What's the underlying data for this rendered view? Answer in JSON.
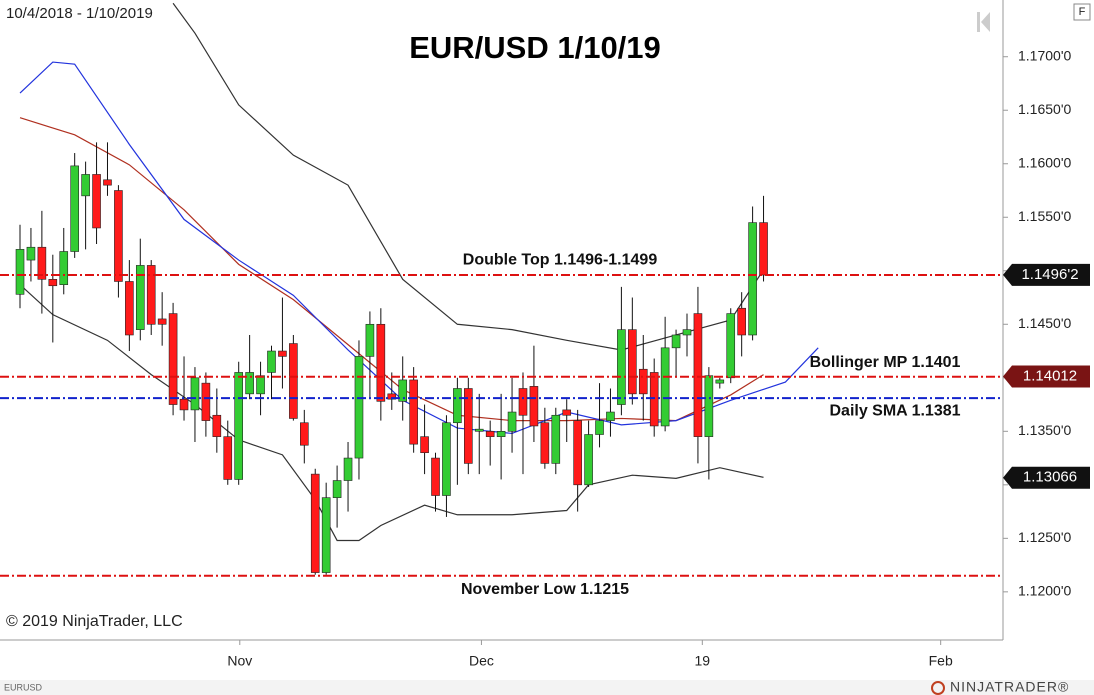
{
  "chart_data": {
    "type": "candlestick",
    "title": "EUR/USD 1/10/19",
    "date_range": "10/4/2018 - 1/10/2019",
    "source": "© 2019 NinjaTrader, LLC",
    "symbol": "EURUSD",
    "brand": "NINJATRADER®",
    "corner_label": "F",
    "up_color": "#33cc33",
    "down_color": "#ff1a1a",
    "x": [
      0,
      1,
      2,
      3,
      4,
      5,
      6,
      7,
      8,
      9,
      10,
      11,
      12,
      13,
      14,
      15,
      16,
      17,
      18,
      19,
      20,
      21,
      22,
      23,
      24,
      25,
      26,
      27,
      28,
      29,
      30,
      31,
      32,
      33,
      34,
      35,
      36,
      37,
      38,
      39,
      40,
      41,
      42,
      43,
      44,
      45,
      46,
      47,
      48,
      49,
      50,
      51,
      52,
      53,
      54,
      55,
      56,
      57,
      58,
      59,
      60,
      61,
      62,
      63,
      64,
      65,
      66,
      67,
      68
    ],
    "open": [
      1.1478,
      1.151,
      1.1522,
      1.1492,
      1.1487,
      1.1518,
      1.157,
      1.159,
      1.1585,
      1.1575,
      1.149,
      1.1445,
      1.1505,
      1.1455,
      1.146,
      1.138,
      1.137,
      1.1395,
      1.1365,
      1.1345,
      1.1305,
      1.1385,
      1.1385,
      1.1405,
      1.1425,
      1.1432,
      1.1358,
      1.131,
      1.1218,
      1.1288,
      1.1304,
      1.1325,
      1.142,
      1.145,
      1.1385,
      1.1378,
      1.1398,
      1.1345,
      1.1325,
      1.129,
      1.1358,
      1.139,
      1.135,
      1.135,
      1.1345,
      1.135,
      1.139,
      1.1392,
      1.1358,
      1.132,
      1.137,
      1.136,
      1.13,
      1.1347,
      1.136,
      1.1375,
      1.1445,
      1.1408,
      1.1405,
      1.1355,
      1.1428,
      1.144,
      1.146,
      1.1345,
      1.1395,
      1.14,
      1.1465,
      1.144,
      1.1545
    ],
    "high": [
      1.1543,
      1.154,
      1.1556,
      1.1515,
      1.154,
      1.161,
      1.1602,
      1.162,
      1.162,
      1.158,
      1.151,
      1.153,
      1.151,
      1.148,
      1.147,
      1.142,
      1.141,
      1.1405,
      1.139,
      1.136,
      1.1415,
      1.144,
      1.1415,
      1.143,
      1.1475,
      1.144,
      1.137,
      1.1315,
      1.1302,
      1.1318,
      1.134,
      1.1435,
      1.1462,
      1.1465,
      1.1405,
      1.142,
      1.141,
      1.1375,
      1.133,
      1.1365,
      1.14,
      1.14,
      1.1385,
      1.136,
      1.1385,
      1.14,
      1.1405,
      1.143,
      1.1372,
      1.1372,
      1.138,
      1.137,
      1.136,
      1.1395,
      1.139,
      1.1485,
      1.1475,
      1.144,
      1.1418,
      1.1457,
      1.1445,
      1.146,
      1.1485,
      1.141,
      1.14,
      1.1465,
      1.148,
      1.156,
      1.157
    ],
    "low": [
      1.1465,
      1.149,
      1.146,
      1.1433,
      1.1478,
      1.1512,
      1.152,
      1.1525,
      1.157,
      1.1475,
      1.1425,
      1.1435,
      1.144,
      1.143,
      1.1365,
      1.136,
      1.134,
      1.1345,
      1.133,
      1.13,
      1.13,
      1.138,
      1.1365,
      1.138,
      1.139,
      1.136,
      1.132,
      1.1216,
      1.1216,
      1.126,
      1.1275,
      1.1305,
      1.138,
      1.136,
      1.137,
      1.136,
      1.133,
      1.131,
      1.1275,
      1.127,
      1.13,
      1.131,
      1.131,
      1.1318,
      1.1305,
      1.133,
      1.131,
      1.134,
      1.1315,
      1.131,
      1.134,
      1.1275,
      1.1298,
      1.1335,
      1.1345,
      1.1365,
      1.1375,
      1.136,
      1.1345,
      1.135,
      1.14,
      1.142,
      1.132,
      1.1305,
      1.139,
      1.1395,
      1.142,
      1.1435,
      1.149
    ],
    "close": [
      1.152,
      1.1522,
      1.1492,
      1.1486,
      1.1518,
      1.1598,
      1.159,
      1.154,
      1.158,
      1.149,
      1.144,
      1.1505,
      1.145,
      1.145,
      1.1375,
      1.137,
      1.14,
      1.136,
      1.1345,
      1.1305,
      1.1405,
      1.1405,
      1.1402,
      1.1425,
      1.142,
      1.1362,
      1.1337,
      1.1218,
      1.1288,
      1.1304,
      1.1325,
      1.142,
      1.145,
      1.1378,
      1.138,
      1.1398,
      1.1338,
      1.133,
      1.129,
      1.1358,
      1.139,
      1.132,
      1.1352,
      1.1345,
      1.135,
      1.1368,
      1.1365,
      1.1355,
      1.132,
      1.1365,
      1.1365,
      1.13,
      1.1347,
      1.136,
      1.1368,
      1.1445,
      1.1385,
      1.1385,
      1.1355,
      1.1428,
      1.144,
      1.1445,
      1.1345,
      1.1402,
      1.1398,
      1.146,
      1.144,
      1.1545,
      1.1496
    ],
    "overlays": [
      {
        "color": "#333333",
        "x": [
          14,
          16,
          20,
          25,
          30,
          35,
          40,
          45,
          50,
          55,
          60,
          65,
          68
        ],
        "values": [
          1.175,
          1.1722,
          1.1655,
          1.1608,
          1.158,
          1.1492,
          1.145,
          1.1445,
          1.1435,
          1.1426,
          1.144,
          1.1454,
          1.1501
        ]
      },
      {
        "color": "#333333",
        "x": [
          0,
          3,
          8,
          12,
          16,
          20,
          24,
          27,
          29,
          31,
          33,
          37,
          40,
          45,
          50,
          52,
          56,
          60,
          64,
          68
        ],
        "values": [
          1.1487,
          1.1459,
          1.1435,
          1.1403,
          1.1375,
          1.1342,
          1.1328,
          1.1286,
          1.1248,
          1.1248,
          1.1262,
          1.1281,
          1.1272,
          1.1272,
          1.1276,
          1.13,
          1.1309,
          1.1306,
          1.1316,
          1.1307
        ]
      },
      {
        "color": "#b03020",
        "x": [
          0,
          5,
          10,
          15,
          20,
          25,
          30,
          35,
          40,
          45,
          50,
          55,
          60,
          65,
          68
        ],
        "values": [
          1.1643,
          1.1627,
          1.1599,
          1.1557,
          1.1506,
          1.1473,
          1.1431,
          1.1389,
          1.1365,
          1.136,
          1.136,
          1.1362,
          1.136,
          1.1384,
          1.1403
        ]
      },
      {
        "color": "#2233dd",
        "x": [
          0,
          3,
          5,
          10,
          15,
          20,
          25,
          30,
          35,
          40,
          45,
          50,
          55,
          60,
          65,
          70,
          73
        ],
        "values": [
          1.1666,
          1.1695,
          1.1693,
          1.1618,
          1.1548,
          1.151,
          1.1477,
          1.1426,
          1.1379,
          1.1353,
          1.1348,
          1.1368,
          1.1356,
          1.136,
          1.1379,
          1.1396,
          1.1428
        ]
      }
    ],
    "levels": [
      {
        "value": 1.1496,
        "label": "Double Top 1.1496-1.1499",
        "color": "#dd1111"
      },
      {
        "value": 1.1401,
        "label": "Bollinger MP 1.1401",
        "color": "#dd1111"
      },
      {
        "value": 1.1381,
        "label": "Daily SMA 1.1381",
        "color": "#1122cc"
      },
      {
        "value": 1.1215,
        "label": "November Low 1.1215",
        "color": "#dd1111"
      }
    ],
    "price_tags": [
      {
        "value": 1.14962,
        "label": "1.1496'2",
        "color": "#111111"
      },
      {
        "value": 1.14012,
        "label": "1.14012",
        "color": "#7a1414"
      },
      {
        "value": 1.13066,
        "label": "1.13066",
        "color": "#111111"
      }
    ],
    "xlim": [
      -1.83,
      89.9
    ],
    "xticks": [
      {
        "value": 20.1,
        "label": "Nov"
      },
      {
        "value": 42.2,
        "label": "Dec"
      },
      {
        "value": 62.4,
        "label": "19"
      },
      {
        "value": 84.2,
        "label": "Feb"
      }
    ],
    "ylim": [
      1.1155,
      1.1753
    ],
    "yticks": [
      {
        "value": 1.12,
        "label": "1.1200'0"
      },
      {
        "value": 1.125,
        "label": "1.1250'0"
      },
      {
        "value": 1.13,
        "label": "1.1300'0"
      },
      {
        "value": 1.135,
        "label": "1.1350'0"
      },
      {
        "value": 1.14,
        "label": "1.1400'0"
      },
      {
        "value": 1.145,
        "label": "1.1450'0"
      },
      {
        "value": 1.15,
        "label": "1.1500'0"
      },
      {
        "value": 1.155,
        "label": "1.1550'0"
      },
      {
        "value": 1.16,
        "label": "1.1600'0"
      },
      {
        "value": 1.165,
        "label": "1.1650'0"
      },
      {
        "value": 1.17,
        "label": "1.1700'0"
      }
    ]
  }
}
